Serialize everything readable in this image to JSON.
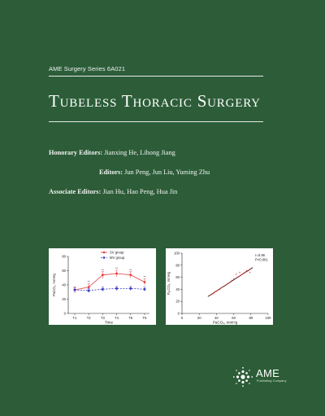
{
  "series": "AME Surgery Series 6A021",
  "title": "Tubeless Thoracic Surgery",
  "editors": [
    {
      "role": "Honorary Editors:",
      "names": "Jianxing He, Lihong Jiang"
    },
    {
      "role": "Editors:",
      "names": "Jun Peng, Jun Liu, Yuming Zhu"
    },
    {
      "role": "Associate Editors:",
      "names": "Jian Hu, Hao Peng, Hua Jin"
    }
  ],
  "publisher": {
    "name": "AME",
    "tagline": "Publishing Company"
  },
  "colors": {
    "background": "#2c5d38",
    "sv_group": "#e53b3b",
    "mv_group": "#3a3ac8"
  },
  "chart_data": [
    {
      "type": "line",
      "categories": [
        "T1",
        "T2",
        "T3",
        "T4",
        "T5",
        "T6"
      ],
      "xlabel": "Time",
      "ylabel": "PaCO₂, mmHg",
      "ylim": [
        0,
        80
      ],
      "yticks": [
        "0",
        "20",
        "40",
        "60",
        "80"
      ],
      "series": [
        {
          "name": "SV group",
          "values": [
            33,
            37,
            54,
            56,
            54,
            44
          ],
          "annotations": [
            "",
            "**",
            "**",
            "**",
            "**",
            "**"
          ],
          "style": "solid",
          "marker": "circle"
        },
        {
          "name": "MV group",
          "values": [
            33,
            32,
            34,
            35,
            35,
            34
          ],
          "style": "dashed",
          "marker": "square"
        }
      ],
      "legend": "top"
    },
    {
      "type": "scatter",
      "xlabel": "PaCO₂, mmHg",
      "ylabel": "PₑₜCO₂, mmHg",
      "xlim": [
        0,
        100
      ],
      "ylim": [
        0,
        100
      ],
      "xticks": [
        "0",
        "20",
        "40",
        "60",
        "80",
        "100"
      ],
      "yticks": [
        "0",
        "20",
        "40",
        "60",
        "80",
        "100"
      ],
      "annotation": [
        "r=0.96",
        "P<0.001"
      ],
      "points": [
        [
          33,
          30
        ],
        [
          35,
          32
        ],
        [
          36,
          33
        ],
        [
          37,
          34
        ],
        [
          38,
          36
        ],
        [
          40,
          37
        ],
        [
          41,
          38
        ],
        [
          42,
          39
        ],
        [
          44,
          40
        ],
        [
          45,
          42
        ],
        [
          46,
          43
        ],
        [
          48,
          44
        ],
        [
          50,
          46
        ],
        [
          52,
          48
        ],
        [
          54,
          50
        ],
        [
          55,
          51
        ],
        [
          57,
          53
        ],
        [
          58,
          55
        ],
        [
          60,
          57
        ],
        [
          62,
          58
        ],
        [
          64,
          60
        ],
        [
          66,
          61
        ],
        [
          68,
          63
        ],
        [
          70,
          65
        ],
        [
          72,
          67
        ],
        [
          74,
          69
        ],
        [
          76,
          70
        ],
        [
          78,
          72
        ],
        [
          80,
          74
        ],
        [
          63,
          65
        ],
        [
          67,
          68
        ],
        [
          71,
          66
        ],
        [
          75,
          71
        ],
        [
          79,
          68
        ]
      ],
      "fit": [
        [
          30,
          28
        ],
        [
          82,
          76
        ]
      ],
      "grid": false
    }
  ]
}
